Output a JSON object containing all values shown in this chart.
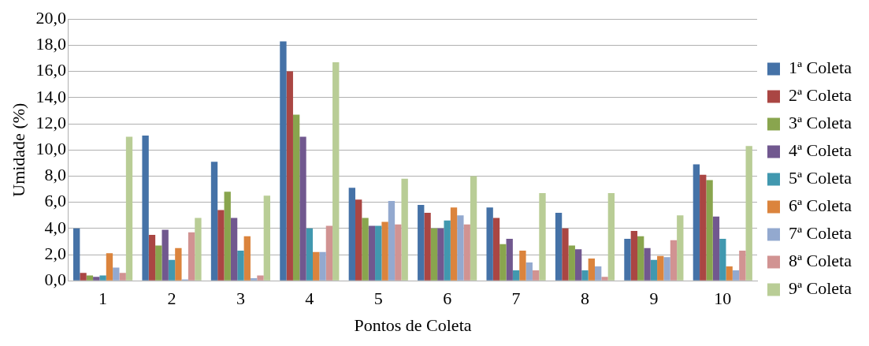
{
  "chart_data": {
    "type": "bar",
    "xlabel": "Pontos de Coleta",
    "ylabel": "Umidade (%)",
    "categories": [
      "1",
      "2",
      "3",
      "4",
      "5",
      "6",
      "7",
      "8",
      "9",
      "10"
    ],
    "series": [
      {
        "name": "1ª Coleta",
        "color": "#4572a7",
        "values": [
          4.0,
          11.1,
          9.1,
          18.3,
          7.1,
          5.8,
          5.6,
          5.2,
          3.2,
          8.9
        ]
      },
      {
        "name": "2ª Coleta",
        "color": "#aa4643",
        "values": [
          0.6,
          3.5,
          5.4,
          16.0,
          6.2,
          5.2,
          4.8,
          4.0,
          3.8,
          8.1
        ]
      },
      {
        "name": "3ª Coleta",
        "color": "#89a54e",
        "values": [
          0.4,
          2.7,
          6.8,
          12.7,
          4.8,
          4.0,
          2.8,
          2.7,
          3.4,
          7.7
        ]
      },
      {
        "name": "4ª Coleta",
        "color": "#71588f",
        "values": [
          0.3,
          3.9,
          4.8,
          11.0,
          4.2,
          4.0,
          3.2,
          2.4,
          2.5,
          4.9
        ]
      },
      {
        "name": "5ª Coleta",
        "color": "#4198af",
        "values": [
          0.4,
          1.6,
          2.3,
          4.0,
          4.2,
          4.6,
          0.8,
          0.8,
          1.6,
          3.2
        ]
      },
      {
        "name": "6ª Coleta",
        "color": "#db843d",
        "values": [
          2.1,
          2.5,
          3.4,
          2.2,
          4.5,
          5.6,
          2.3,
          1.7,
          1.9,
          1.1
        ]
      },
      {
        "name": "7ª Coleta",
        "color": "#93a9cf",
        "values": [
          1.0,
          0.1,
          0.2,
          2.2,
          6.1,
          5.0,
          1.4,
          1.1,
          1.8,
          0.8
        ]
      },
      {
        "name": "8ª Coleta",
        "color": "#d19392",
        "values": [
          0.6,
          3.7,
          0.4,
          4.2,
          4.3,
          4.3,
          0.8,
          0.3,
          3.1,
          2.3
        ]
      },
      {
        "name": "9ª Coleta",
        "color": "#b9cd96",
        "values": [
          11.0,
          4.8,
          6.5,
          16.7,
          7.8,
          8.0,
          6.7,
          6.7,
          5.0,
          10.3
        ]
      }
    ],
    "ylim": [
      0,
      20
    ],
    "yticks": [
      {
        "value": 0,
        "label": "0,0"
      },
      {
        "value": 2,
        "label": "2,0"
      },
      {
        "value": 4,
        "label": "4,0"
      },
      {
        "value": 6,
        "label": "6,0"
      },
      {
        "value": 8,
        "label": "8,0"
      },
      {
        "value": 10,
        "label": "10,0"
      },
      {
        "value": 12,
        "label": "12,0"
      },
      {
        "value": 14,
        "label": "14,0"
      },
      {
        "value": 16,
        "label": "16,0"
      },
      {
        "value": 18,
        "label": "18,0"
      },
      {
        "value": 20,
        "label": "20,0"
      }
    ],
    "grid": "y",
    "legend": "right"
  }
}
